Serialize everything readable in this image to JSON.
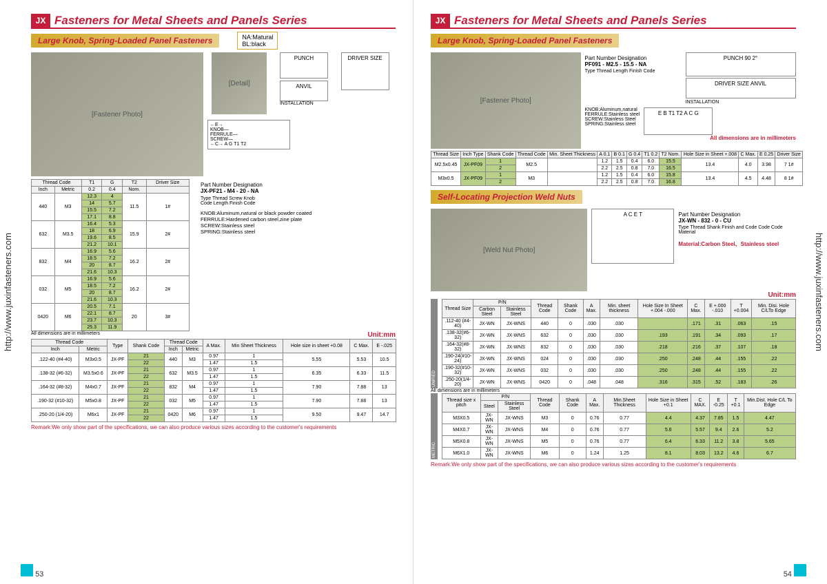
{
  "url": "http://www.juxinfasteners.com",
  "page_left_num": "53",
  "page_right_num": "54",
  "main_title": "Fasteners for Metal Sheets and Panels Series",
  "subtitle_left": "Large Knob, Spring-Loaded Panel Fasteners",
  "subtitle_right_1": "Large Knob, Spring-Loaded Panel Fasteners",
  "subtitle_right_2": "Self-Locating Projection Weld Nuts",
  "finish": {
    "na": "NA:Matural",
    "bl": "BL:black"
  },
  "diag_labels": {
    "punch": "PUNCH",
    "anvil": "ANVIL",
    "install": "INSTALLATION",
    "driver": "DRIVER SIZE",
    "knob": "KNOB",
    "ferrule": "FERRULE",
    "screw": "SCREW"
  },
  "table1_hdr": {
    "thread": "Thread Code",
    "inch": "Inch",
    "metric": "Metric",
    "t1": "T1",
    "g": "G",
    "t2": "T2",
    "driver": "Driver Size",
    "t1v": "0.2",
    "gv": "0.4",
    "t2v": "Nom."
  },
  "table1_rows": [
    {
      "inch": "440",
      "metric": "M3",
      "t1": [
        "12.3",
        "14",
        "15.5",
        "17.1"
      ],
      "g": [
        "4",
        "5.7",
        "7.2",
        "8.8"
      ],
      "t2": "11.5",
      "drv": "1#"
    },
    {
      "inch": "632",
      "metric": "M3.5",
      "t1": [
        "16.4",
        "18",
        "19.6",
        "21.2"
      ],
      "g": [
        "5.3",
        "6.9",
        "8.5",
        "10.1"
      ],
      "t2": "15.9",
      "drv": "2#"
    },
    {
      "inch": "832",
      "metric": "M4",
      "t1": [
        "16.9",
        "18.5",
        "20",
        "21.6"
      ],
      "g": [
        "5.6",
        "7.2",
        "8.7",
        "10.3"
      ],
      "t2": "16.2",
      "drv": "2#"
    },
    {
      "inch": "032",
      "metric": "M5",
      "t1": [
        "16.9",
        "18.5",
        "20",
        "21.6"
      ],
      "g": [
        "5.6",
        "7.2",
        "8.7",
        "10.3"
      ],
      "t2": "16.2",
      "drv": "2#"
    },
    {
      "inch": "0420",
      "metric": "M6",
      "t1": [
        "20.5",
        "22.1",
        "23.7",
        "25.3"
      ],
      "g": [
        "7.1",
        "8.7",
        "10.3",
        "11.9"
      ],
      "t2": "20",
      "drv": "3#"
    }
  ],
  "pn_left": "JX-PF21  -  M4    -   20   -   NA",
  "pn_labels_left": "Type   Thread   Screw   Knob",
  "pn_labels_left2": "Code   Length  Finish Code",
  "materials_left": "KNOB:Aluminum,natural or black powder coated\nFERRULE:Hardened carbon steel,zine plate\nSCREW:Stainless steel\nSPRING:Stainless steel",
  "dims_note": "All dimensions are in millimeters",
  "unit_mm": "Unit:mm",
  "table2_hdr": [
    "Thread Code",
    "",
    "Type",
    "Shank Code",
    "Thread Code",
    "",
    "A Max.",
    "Min Sheet Thickness",
    "Hole size in sheet +0.08",
    "C Max.",
    "E -.025"
  ],
  "table2_hdr2": [
    "Inch",
    "Metric",
    "",
    "",
    "Inch",
    "Metric",
    "",
    "",
    "",
    "",
    ""
  ],
  "table2_rows": [
    {
      "i": ".122-40 (#4-40)",
      "m": "M3x0.5",
      "type": "JX-PF",
      "sc": [
        "21",
        "22"
      ],
      "ti": "440",
      "tm": "M3",
      "a": [
        "0.97",
        "1.47"
      ],
      "ms": [
        "1",
        "1.5"
      ],
      "hs": "5.55",
      "c": "5.53",
      "e": "10.5"
    },
    {
      "i": ".138-32 (#6-32)",
      "m": "M3.5x0.6",
      "type": "JX-PF",
      "sc": [
        "21",
        "22"
      ],
      "ti": "632",
      "tm": "M3.5",
      "a": [
        "0.97",
        "1.47"
      ],
      "ms": [
        "1",
        "1.5"
      ],
      "hs": "6.35",
      "c": "6.33",
      "e": "11.5"
    },
    {
      "i": ".164-32 (#8-32)",
      "m": "M4x0.7",
      "type": "JX-PF",
      "sc": [
        "21",
        "22"
      ],
      "ti": "832",
      "tm": "M4",
      "a": [
        "0.97",
        "1.47"
      ],
      "ms": [
        "1",
        "1.5"
      ],
      "hs": "7.90",
      "c": "7.88",
      "e": "13"
    },
    {
      "i": ".190-32 (#10-32)",
      "m": "M5x0.8",
      "type": "JX-PF",
      "sc": [
        "21",
        "22"
      ],
      "ti": "032",
      "tm": "M5",
      "a": [
        "0.97",
        "1.47"
      ],
      "ms": [
        "1",
        "1.5"
      ],
      "hs": "7.90",
      "c": "7.88",
      "e": "13"
    },
    {
      "i": ".250-20 (1/4-20)",
      "m": "M6x1",
      "type": "JX-PF",
      "sc": [
        "21",
        "22"
      ],
      "ti": "0420",
      "tm": "M6",
      "a": [
        "0.97",
        "1.47"
      ],
      "ms": [
        "1",
        "1.5"
      ],
      "hs": "9.50",
      "c": "9.47",
      "e": "14.7"
    }
  ],
  "remark": "Remark:We only show part of the specifications, we can also produce various sizes according to the customer's requirements",
  "pn_right1": "PF091 - M2.5   -  15.5  -   NA",
  "pn_right1_lbl": "Type  Thread  Length  Finish Code",
  "materials_right1": "KNOB:Aluminum,natural\nFERRULE:Stainless steel\nSCREW:Stainless Steel\nSPRING:Stainless steel",
  "dims_red": "All dimensions are in millimeters",
  "table3_hdr": [
    "Thread Size",
    "Inch Type",
    "Shank Code",
    "Thread Code",
    "Min. Sheet Thickness",
    "A 0.1",
    "B 0.1",
    "G 0.4",
    "T1 0.2",
    "T2 Nom.",
    "Hole Size in Sheet +.008",
    "C Max.",
    "E 0.25",
    "Driver Size"
  ],
  "table3_rows": [
    {
      "ts": "M2.5x0.45",
      "it": "JX-PF09",
      "sc": [
        "1",
        "2"
      ],
      "tc": "M2.5",
      "ms": "",
      "a": [
        "1.2",
        "2.2"
      ],
      "b": [
        "1.5",
        "2.5"
      ],
      "g": [
        "0.4",
        "0.8"
      ],
      "t1": [
        "6.0",
        "7.0"
      ],
      "t2": [
        "15.5",
        "16.5"
      ],
      "hs": "13.4",
      "c": "4.0",
      "e": "3.98",
      "drv": "7   1#"
    },
    {
      "ts": "M3x0.5",
      "it": "JX-PF09",
      "sc": [
        "1",
        "2"
      ],
      "tc": "M3",
      "ms": "",
      "a": [
        "1.2",
        "2.2"
      ],
      "b": [
        "1.5",
        "2.5"
      ],
      "g": [
        "0.4",
        "0.8"
      ],
      "t1": [
        "6.0",
        "7.0"
      ],
      "t2": [
        "15.8",
        "16.8"
      ],
      "hs": "13.4",
      "c": "4.5",
      "e": "4.48",
      "drv": "8   1#"
    }
  ],
  "pn_right2": "JX-WN - 832 - 0 - CU",
  "pn_right2_lbl": "Type Thread Shank Finish and Code Code Code Material",
  "material_right2": "Material:Carbon Steel、Stainless steel",
  "table4_hdr": [
    "Thread Size",
    "P/N",
    "",
    "Thread Code",
    "Shank Code",
    "A Max.",
    "Min. sheet thickness",
    "Hole Size In Sheet +.004 -.000",
    "C Max.",
    "E +.000 -.010",
    "T +0.004",
    "Min. Disi. Hole C/LTo Edge"
  ],
  "table4_hdr2": [
    "",
    "Carbon Steel",
    "Stainless Steel",
    "",
    "",
    "",
    "",
    "",
    "",
    "",
    "",
    ""
  ],
  "table4_rows": [
    {
      "ts": ".112-40 (#4-40)",
      "cs": "JX-WN",
      "ss": "JX-WNS",
      "tc": "440",
      "sc": "0",
      "a": ".030",
      "ms": ".030",
      "hs": "",
      "c": ".171",
      "e": ".31",
      "t": ".063",
      "md": ".15"
    },
    {
      "ts": ".138-32(#6-32)",
      "cs": "JX-WN",
      "ss": "JX-WNS",
      "tc": "632",
      "sc": "0",
      "a": ".030",
      "ms": ".030",
      "hs": ".193",
      "c": ".191",
      "e": ".34",
      "t": ".093",
      "md": ".17"
    },
    {
      "ts": ".164-32(#8-32)",
      "cs": "JX-WN",
      "ss": "JX-WNS",
      "tc": "832",
      "sc": "0",
      "a": ".030",
      "ms": ".030",
      "hs": ".218",
      "c": ".216",
      "e": ".37",
      "t": ".107",
      "md": ".18"
    },
    {
      "ts": ".190-24(#10-24)",
      "cs": "JX-WN",
      "ss": "JX-WNS",
      "tc": "024",
      "sc": "0",
      "a": ".030",
      "ms": ".030",
      "hs": ".250",
      "c": ".248",
      "e": ".44",
      "t": ".155",
      "md": ".22"
    },
    {
      "ts": ".190-32(#10-32)",
      "cs": "JX-WN",
      "ss": "JX-WNS",
      "tc": "032",
      "sc": "0",
      "a": ".030",
      "ms": ".030",
      "hs": ".250",
      "c": ".248",
      "e": ".44",
      "t": ".155",
      "md": ".22"
    },
    {
      "ts": ".250-20(1/4-20)",
      "cs": "JX-WN",
      "ss": "JX-WNS",
      "tc": "0420",
      "sc": "0",
      "a": ".048",
      "ms": ".048",
      "hs": ".316",
      "c": ".315",
      "e": ".52",
      "t": ".183",
      "md": ".26"
    }
  ],
  "table5_hdr": [
    "Thread size x pitch",
    "P/N",
    "",
    "Thread Code",
    "Shank Code",
    "A Max.",
    "Min.Sheet Thickness",
    "Hole Size in Sheet +0.1",
    "C MAX.",
    "E -0.25",
    "T +0.1",
    "Min.Dist. Hole C/L To Edge"
  ],
  "table5_hdr2": [
    "",
    "Steel",
    "Stainless Steel",
    "",
    "",
    "",
    "",
    "",
    "",
    "",
    "",
    ""
  ],
  "table5_rows": [
    {
      "ts": "M3X0.5",
      "cs": "JX-WN",
      "ss": "JX-WNS",
      "tc": "M3",
      "sc": "0",
      "a": "0.76",
      "ms": "0.77",
      "hs": "4.4",
      "c": "4.37",
      "e": "7.85",
      "t": "1.5",
      "md": "4.47"
    },
    {
      "ts": "M4X0.7",
      "cs": "JX-WN",
      "ss": "JX-WNS",
      "tc": "M4",
      "sc": "0",
      "a": "0.76",
      "ms": "0.77",
      "hs": "5.6",
      "c": "5.57",
      "e": "9.4",
      "t": "2.6",
      "md": "5.2"
    },
    {
      "ts": "M5X0.8",
      "cs": "JX-WN",
      "ss": "JX-WNS",
      "tc": "M5",
      "sc": "0",
      "a": "0.76",
      "ms": "0.77",
      "hs": "6.4",
      "c": "6.33",
      "e": "11.2",
      "t": "3.8",
      "md": "5.65"
    },
    {
      "ts": "M6X1.0",
      "cs": "JX-WN",
      "ss": "JX-WNS",
      "tc": "M6",
      "sc": "0",
      "a": "1.24",
      "ms": "1.25",
      "hs": "8.1",
      "c": "8.03",
      "e": "13.2",
      "t": "4.6",
      "md": "6.7"
    }
  ],
  "side_lbl_unified": "UNIFIED",
  "side_lbl_metric": "METRIC",
  "part_desig": "Part Number Designation"
}
